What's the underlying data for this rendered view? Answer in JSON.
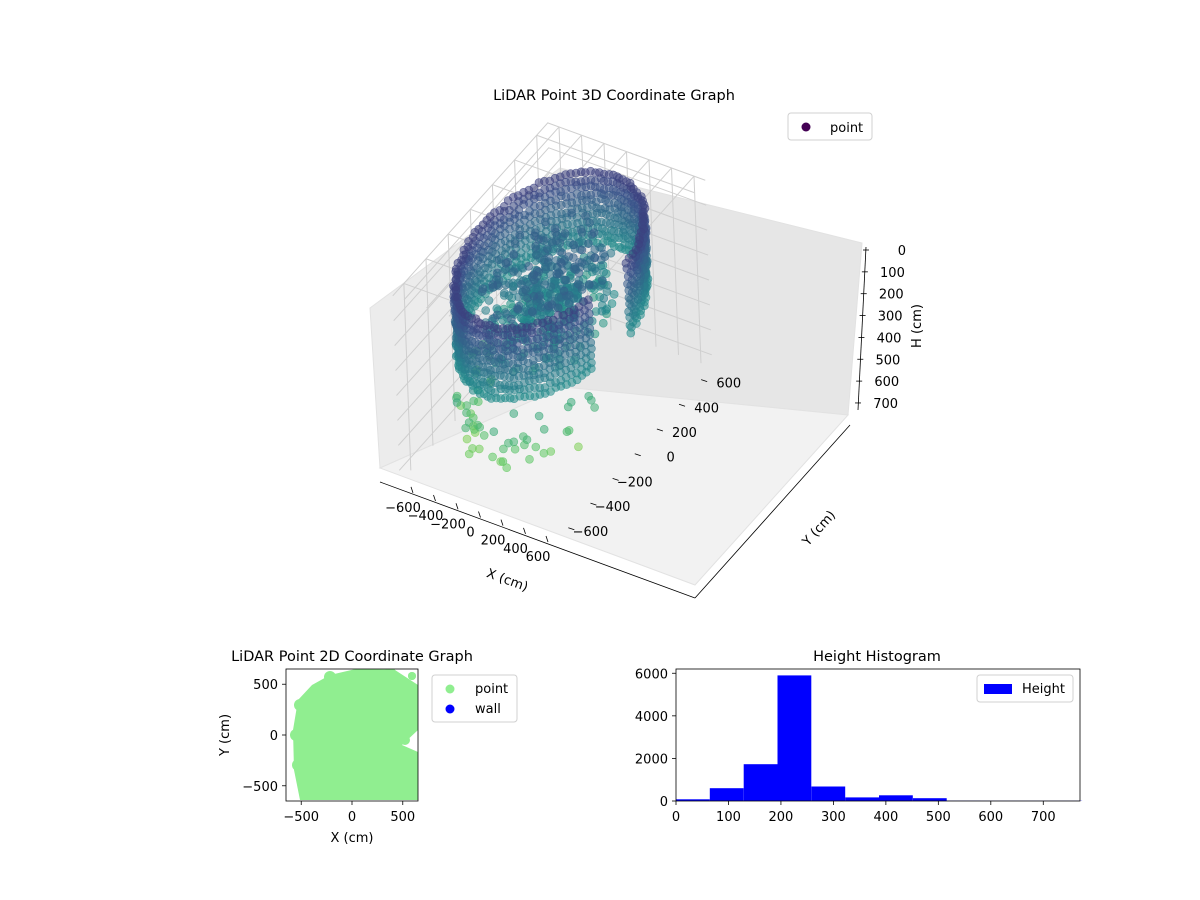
{
  "chart_data": [
    {
      "type": "scatter",
      "title": "LiDAR Point 3D Coordinate Graph",
      "xlabel": "X (cm)",
      "ylabel": "Y (cm)",
      "zlabel": "H (cm)",
      "xticks": [
        "−600",
        "−400",
        "−200",
        "0",
        "200",
        "400",
        "600"
      ],
      "yticks": [
        "−600",
        "−400",
        "−200",
        "0",
        "200",
        "400",
        "600"
      ],
      "zticks": [
        "0",
        "100",
        "200",
        "300",
        "400",
        "500",
        "600",
        "700"
      ],
      "xlim": [
        -700,
        700
      ],
      "ylim": [
        -700,
        700
      ],
      "zlim": [
        0,
        750
      ],
      "zinverted": true,
      "colormap": "viridis",
      "legend": {
        "location": "top-right",
        "entries": [
          {
            "label": "point",
            "color": "#440154"
          }
        ]
      },
      "shape": {
        "ring_radius": 600,
        "ring_height_min": 50,
        "ring_height_max": 350,
        "floor_height": 700
      }
    },
    {
      "type": "scatter",
      "title": "LiDAR Point 2D Coordinate Graph",
      "xlabel": "X (cm)",
      "ylabel": "Y (cm)",
      "xticks": [
        -500,
        0,
        500
      ],
      "yticks": [
        -500,
        0,
        500
      ],
      "xlim": [
        -650,
        650
      ],
      "ylim": [
        -650,
        650
      ],
      "legend": {
        "location": "right-outside",
        "entries": [
          {
            "label": "point",
            "color": "#90ee90"
          },
          {
            "label": "wall",
            "color": "#0000ff"
          }
        ]
      }
    },
    {
      "type": "bar",
      "title": "Height Histogram",
      "xlim": [
        0,
        770
      ],
      "ylim": [
        0,
        6200
      ],
      "xticks": [
        0,
        100,
        200,
        300,
        400,
        500,
        600,
        700
      ],
      "yticks": [
        0,
        2000,
        4000,
        6000
      ],
      "bin_width": 64.5,
      "bins": [
        {
          "start": 0,
          "value": 80
        },
        {
          "start": 64.5,
          "value": 600
        },
        {
          "start": 129,
          "value": 1730
        },
        {
          "start": 193.5,
          "value": 5900
        },
        {
          "start": 258,
          "value": 680
        },
        {
          "start": 322.5,
          "value": 170
        },
        {
          "start": 387,
          "value": 270
        },
        {
          "start": 451.5,
          "value": 130
        },
        {
          "start": 516,
          "value": 15
        },
        {
          "start": 580.5,
          "value": 10
        },
        {
          "start": 645,
          "value": 10
        },
        {
          "start": 709.5,
          "value": 10
        }
      ],
      "color": "#0000ff",
      "legend": {
        "location": "top-right",
        "entries": [
          {
            "label": "Height",
            "color": "#0000ff"
          }
        ]
      }
    }
  ]
}
